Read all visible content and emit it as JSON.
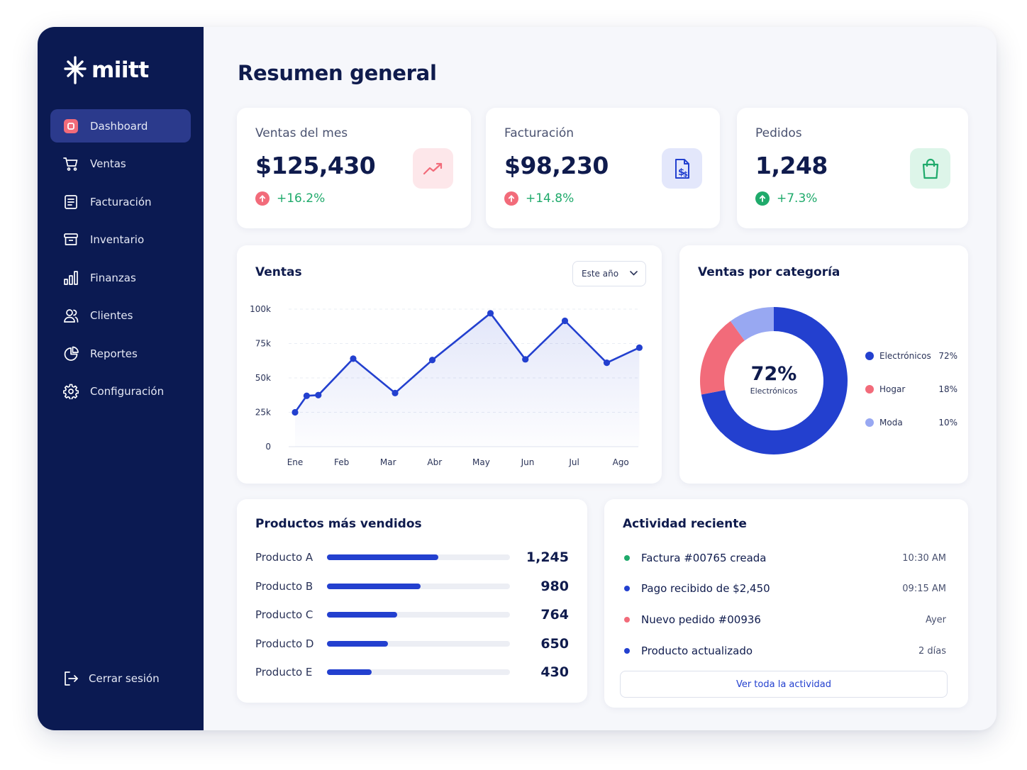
{
  "brand": {
    "name": "miitt"
  },
  "sidebar": {
    "items": [
      {
        "label": "Dashboard",
        "icon": "dashboard-icon",
        "active": true
      },
      {
        "label": "Ventas",
        "icon": "cart-icon"
      },
      {
        "label": "Facturación",
        "icon": "invoice-icon"
      },
      {
        "label": "Inventario",
        "icon": "store-icon"
      },
      {
        "label": "Finanzas",
        "icon": "bar-chart-icon"
      },
      {
        "label": "Clientes",
        "icon": "users-icon"
      },
      {
        "label": "Reportes",
        "icon": "pie-chart-icon"
      },
      {
        "label": "Configuración",
        "icon": "gear-icon"
      }
    ],
    "logout_label": "Cerrar sesión"
  },
  "page": {
    "title": "Resumen general"
  },
  "kpis": {
    "sales": {
      "title": "Ventas del mes",
      "value": "$125,430",
      "delta": "+16.2%",
      "icon": "trend-up-icon",
      "delta_color": "#f26b7a"
    },
    "billing": {
      "title": "Facturación",
      "value": "$98,230",
      "delta": "+14.8%",
      "icon": "invoice-dollar-icon",
      "delta_color": "#f26b7a"
    },
    "orders": {
      "title": "Pedidos",
      "value": "1,248",
      "delta": "+7.3%",
      "icon": "shopping-bag-icon",
      "delta_color": "#1faa6b"
    }
  },
  "sales_chart": {
    "title": "Ventas",
    "period_select": "Este año"
  },
  "category_chart": {
    "title": "Ventas por categoría",
    "center_value": "72%",
    "center_label": "Electrónicos"
  },
  "chart_data": [
    {
      "type": "line",
      "title": "Ventas",
      "categories": [
        "Ene",
        "Feb",
        "Mar",
        "Abr",
        "May",
        "Jun",
        "Jul",
        "Ago"
      ],
      "y_ticks": [
        "0",
        "25k",
        "50k",
        "75k",
        "100k"
      ],
      "ylim": [
        0,
        100000
      ],
      "series": [
        {
          "color": "#2340cf",
          "points": [
            {
              "x": 0.0,
              "y": 25000
            },
            {
              "x": 0.25,
              "y": 37000
            },
            {
              "x": 0.5,
              "y": 37500
            },
            {
              "x": 1.25,
              "y": 64000
            },
            {
              "x": 2.15,
              "y": 39000
            },
            {
              "x": 2.95,
              "y": 63000
            },
            {
              "x": 4.2,
              "y": 97000
            },
            {
              "x": 4.95,
              "y": 63500
            },
            {
              "x": 5.8,
              "y": 91500
            },
            {
              "x": 6.7,
              "y": 61000
            },
            {
              "x": 7.4,
              "y": 72000
            }
          ]
        }
      ],
      "grid": true
    },
    {
      "type": "pie",
      "title": "Ventas por categoría",
      "slices": [
        {
          "label": "Electrónicos",
          "value": 72,
          "display": "72%",
          "color": "#2340cf"
        },
        {
          "label": "Hogar",
          "value": 18,
          "display": "18%",
          "color": "#f26b7a"
        },
        {
          "label": "Moda",
          "value": 10,
          "display": "10%",
          "color": "#98a8f2"
        }
      ],
      "legend": "right"
    }
  ],
  "top_products": {
    "title": "Productos más vendidos",
    "items": [
      {
        "name": "Producto A",
        "value": "1,245",
        "fraction": 0.61
      },
      {
        "name": "Producto B",
        "value": "980",
        "fraction": 0.51
      },
      {
        "name": "Producto C",
        "value": "764",
        "fraction": 0.385
      },
      {
        "name": "Producto D",
        "value": "650",
        "fraction": 0.335
      },
      {
        "name": "Producto E",
        "value": "430",
        "fraction": 0.245
      }
    ]
  },
  "activity": {
    "title": "Actividad reciente",
    "items": [
      {
        "text": "Factura #00765 creada",
        "time": "10:30 AM",
        "color": "#1faa6b"
      },
      {
        "text": "Pago recibido de $2,450",
        "time": "09:15 AM",
        "color": "#2340cf"
      },
      {
        "text": "Nuevo pedido #00936",
        "time": "Ayer",
        "color": "#f26b7a"
      },
      {
        "text": "Producto actualizado",
        "time": "2 días",
        "color": "#2340cf"
      }
    ],
    "button_label": "Ver toda la actividad"
  },
  "colors": {
    "sidebar": "#0b1a52",
    "accent": "#2340cf",
    "positive": "#1faa6b",
    "negative": "#f26b7a"
  }
}
